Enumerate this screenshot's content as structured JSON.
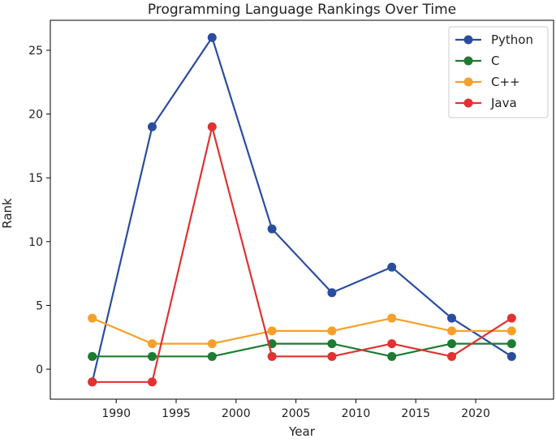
{
  "chart_data": {
    "type": "line",
    "title": "Programming Language Rankings Over Time",
    "xlabel": "Year",
    "ylabel": "Rank",
    "x": [
      1988,
      1993,
      1998,
      2003,
      2008,
      2013,
      2018,
      2023
    ],
    "xlim": [
      1984.5,
      2026.5
    ],
    "ylim": [
      -2.35,
      27.35
    ],
    "xticks": [
      1990,
      1995,
      2000,
      2005,
      2010,
      2015,
      2020
    ],
    "yticks": [
      0,
      5,
      10,
      15,
      20,
      25
    ],
    "grid": false,
    "legend_position": "top-right",
    "series": [
      {
        "name": "Python",
        "color": "#2a4d9f",
        "values": [
          -1,
          19,
          26,
          11,
          6,
          8,
          4,
          1
        ]
      },
      {
        "name": "C",
        "color": "#1e7b32",
        "values": [
          1,
          1,
          1,
          2,
          2,
          1,
          2,
          2
        ]
      },
      {
        "name": "C++",
        "color": "#f5a02a",
        "values": [
          4,
          2,
          2,
          3,
          3,
          4,
          3,
          3
        ]
      },
      {
        "name": "Java",
        "color": "#e03232",
        "values": [
          -1,
          -1,
          19,
          1,
          1,
          2,
          1,
          4
        ]
      }
    ]
  }
}
